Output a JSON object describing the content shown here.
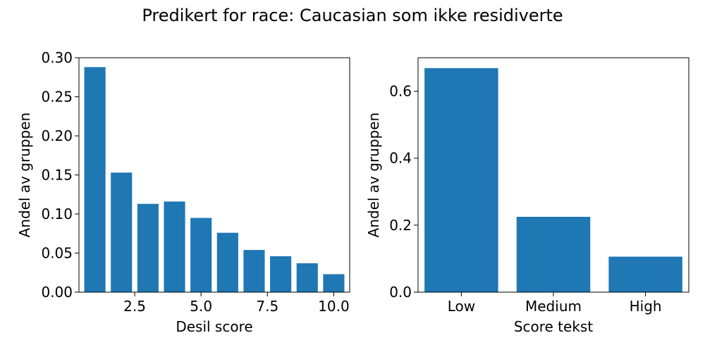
{
  "figure": {
    "suptitle": "Predikert for race: Caucasian som ikke residiverte"
  },
  "chart_data": [
    {
      "type": "bar",
      "xlabel": "Desil score",
      "ylabel": "Andel av gruppen",
      "x": [
        1,
        2,
        3,
        4,
        5,
        6,
        7,
        8,
        9,
        10
      ],
      "values": [
        0.288,
        0.153,
        0.113,
        0.116,
        0.095,
        0.076,
        0.054,
        0.046,
        0.037,
        0.023
      ],
      "xlim": [
        0.4,
        10.6
      ],
      "ylim": [
        0,
        0.3
      ],
      "xticks": [
        2.5,
        5.0,
        7.5,
        10.0
      ],
      "xtick_labels": [
        "2.5",
        "5.0",
        "7.5",
        "10.0"
      ],
      "yticks": [
        0,
        0.05,
        0.1,
        0.15,
        0.2,
        0.25,
        0.3
      ],
      "ytick_labels": [
        "0.00",
        "0.05",
        "0.10",
        "0.15",
        "0.20",
        "0.25",
        "0.30"
      ],
      "color": "#1f77b4",
      "grid": false
    },
    {
      "type": "bar",
      "xlabel": "Score tekst",
      "ylabel": "Andel av gruppen",
      "categories": [
        "Low",
        "Medium",
        "High"
      ],
      "values": [
        0.669,
        0.225,
        0.106
      ],
      "ylim": [
        0,
        0.7
      ],
      "yticks": [
        0,
        0.2,
        0.4,
        0.6
      ],
      "ytick_labels": [
        "0.0",
        "0.2",
        "0.4",
        "0.6"
      ],
      "color": "#1f77b4",
      "grid": false
    }
  ]
}
